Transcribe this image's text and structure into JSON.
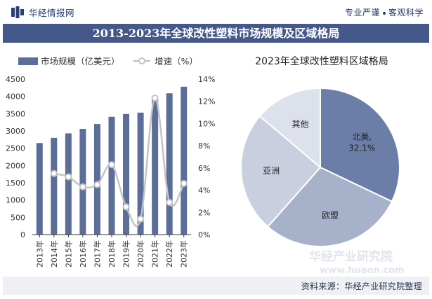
{
  "header": {
    "brand": "华经情报网",
    "tagline_left": "专业严谨",
    "tagline_right": "客观科学"
  },
  "title": "2013-2023年全球改性塑料市场规模及区域格局",
  "footer": {
    "source": "资料来源：华经产业研究院整理"
  },
  "watermark": {
    "name": "华经产业研究院",
    "url": "www.huaon.com"
  },
  "colors": {
    "bar": "#5b6d98",
    "line": "#c4c4c4",
    "title_bg": "#45588a",
    "pie_north_america": "#6b7ea8",
    "pie_europe": "#a7b1ca",
    "pie_asia": "#c9cfdf",
    "pie_other": "#dde1eb"
  },
  "chart_data": [
    {
      "type": "bar",
      "title": "",
      "categories": [
        "2013年",
        "2014年",
        "2015年",
        "2016年",
        "2017年",
        "2018年",
        "2019年",
        "2020年",
        "2021年",
        "2022年",
        "2023年"
      ],
      "series": [
        {
          "name": "市场规模（亿美元）",
          "axis": "left",
          "type": "bar",
          "values": [
            2650,
            2800,
            2930,
            3060,
            3200,
            3410,
            3490,
            3530,
            3960,
            4090,
            4280
          ]
        },
        {
          "name": "增速（%）",
          "axis": "right",
          "type": "line",
          "values": [
            null,
            5.5,
            5.2,
            4.3,
            4.5,
            6.3,
            2.5,
            1.4,
            12.3,
            2.9,
            4.6
          ]
        }
      ],
      "ylim_left": [
        0,
        4500
      ],
      "yticks_left": [
        "0",
        "500",
        "1000",
        "1500",
        "2000",
        "2500",
        "3000",
        "3500",
        "4000",
        "4500"
      ],
      "ylim_right": [
        0,
        14
      ],
      "yticks_right": [
        "0%",
        "2%",
        "4%",
        "6%",
        "8%",
        "10%",
        "12%",
        "14%"
      ],
      "legend_position": "top-left",
      "grid": false
    },
    {
      "type": "pie",
      "title": "2023年全球改性塑料区域格局",
      "labels": [
        "北美,",
        "欧盟",
        "亚洲",
        "其他"
      ],
      "values": [
        32.1,
        29.4,
        24.7,
        13.8
      ],
      "data_labels": [
        "32.1%",
        "",
        "",
        ""
      ]
    }
  ]
}
